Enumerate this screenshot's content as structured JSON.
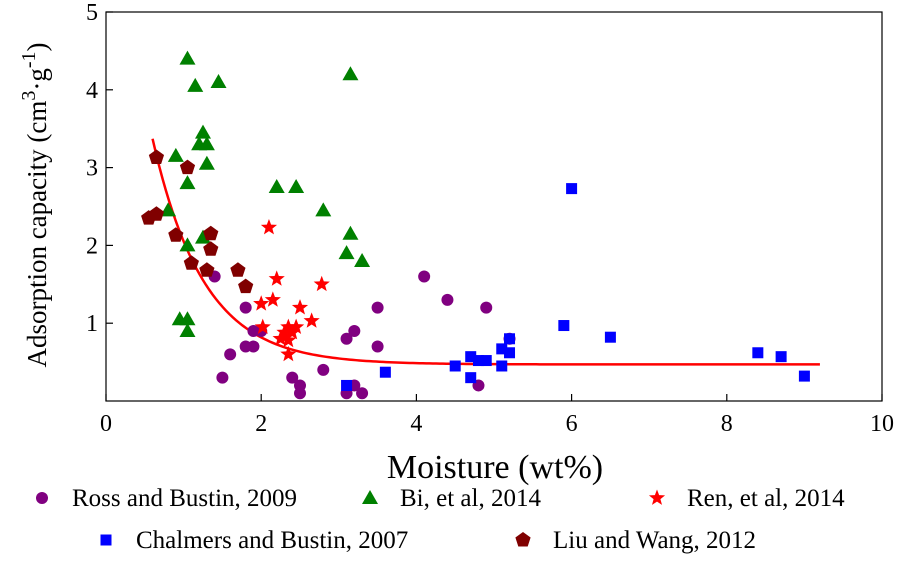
{
  "chart_data": {
    "type": "scatter",
    "xlabel": "Moisture (wt%)",
    "ylabel_main": "Adsorption capacity (cm",
    "ylabel_sup1": "3",
    "ylabel_mid": "·g",
    "ylabel_sup2": "-1",
    "ylabel_end": ")",
    "xlim": [
      0,
      10
    ],
    "ylim": [
      0,
      5
    ],
    "xticks": [
      "0",
      "2",
      "4",
      "6",
      "8",
      "10"
    ],
    "yticks": [
      "1",
      "2",
      "3",
      "4",
      "5"
    ],
    "grid": false,
    "legend_position": "bottom",
    "fit_curve": {
      "color": "#ff0000",
      "label": "",
      "model": "y = 0.47 + 7.2 * exp(-x / 0.66)",
      "x_range": [
        0.6,
        9.2
      ]
    },
    "series": [
      {
        "name": "Ross and Bustin, 2009",
        "marker": "circle",
        "color": "#800080",
        "points": [
          [
            1.5,
            0.3
          ],
          [
            1.6,
            0.6
          ],
          [
            1.8,
            0.7
          ],
          [
            1.8,
            1.2
          ],
          [
            1.9,
            0.9
          ],
          [
            1.9,
            0.7
          ],
          [
            2.0,
            0.9
          ],
          [
            1.4,
            1.6
          ],
          [
            2.4,
            0.3
          ],
          [
            2.5,
            0.2
          ],
          [
            2.5,
            0.1
          ],
          [
            2.8,
            0.4
          ],
          [
            3.1,
            0.8
          ],
          [
            3.1,
            0.1
          ],
          [
            3.2,
            0.9
          ],
          [
            3.2,
            0.2
          ],
          [
            3.3,
            0.1
          ],
          [
            3.5,
            1.2
          ],
          [
            3.5,
            0.7
          ],
          [
            4.1,
            1.6
          ],
          [
            4.4,
            1.3
          ],
          [
            4.8,
            0.2
          ],
          [
            4.9,
            1.2
          ],
          [
            5.2,
            0.8
          ]
        ]
      },
      {
        "name": "Bi, et al, 2014",
        "marker": "triangle",
        "color": "#008000",
        "points": [
          [
            1.05,
            4.4
          ],
          [
            1.15,
            4.05
          ],
          [
            1.45,
            4.1
          ],
          [
            3.15,
            4.2
          ],
          [
            1.25,
            3.45
          ],
          [
            1.2,
            3.3
          ],
          [
            1.3,
            3.3
          ],
          [
            0.9,
            3.15
          ],
          [
            1.3,
            3.05
          ],
          [
            1.05,
            2.8
          ],
          [
            2.2,
            2.75
          ],
          [
            2.45,
            2.75
          ],
          [
            0.8,
            2.45
          ],
          [
            2.8,
            2.45
          ],
          [
            3.15,
            2.15
          ],
          [
            1.25,
            2.1
          ],
          [
            1.05,
            2.0
          ],
          [
            3.1,
            1.9
          ],
          [
            3.3,
            1.8
          ],
          [
            0.95,
            1.05
          ],
          [
            1.05,
            1.05
          ],
          [
            1.05,
            0.9
          ]
        ]
      },
      {
        "name": "Ren, et al, 2014",
        "marker": "star",
        "color": "#ff0000",
        "points": [
          [
            2.1,
            2.23
          ],
          [
            2.2,
            1.57
          ],
          [
            2.78,
            1.5
          ],
          [
            2.15,
            1.3
          ],
          [
            2.0,
            1.25
          ],
          [
            2.5,
            1.2
          ],
          [
            2.65,
            1.03
          ],
          [
            2.02,
            0.95
          ],
          [
            2.35,
            0.95
          ],
          [
            2.45,
            0.95
          ],
          [
            2.3,
            0.88
          ],
          [
            2.4,
            0.88
          ],
          [
            2.25,
            0.8
          ],
          [
            2.35,
            0.78
          ],
          [
            2.35,
            0.6
          ]
        ]
      },
      {
        "name": "Chalmers and Bustin, 2007",
        "marker": "square",
        "color": "#0000ff",
        "points": [
          [
            6.0,
            2.73
          ],
          [
            5.9,
            0.97
          ],
          [
            6.5,
            0.82
          ],
          [
            5.2,
            0.8
          ],
          [
            5.1,
            0.67
          ],
          [
            5.2,
            0.62
          ],
          [
            4.7,
            0.57
          ],
          [
            4.8,
            0.52
          ],
          [
            4.9,
            0.52
          ],
          [
            8.4,
            0.62
          ],
          [
            8.7,
            0.57
          ],
          [
            4.5,
            0.45
          ],
          [
            5.1,
            0.45
          ],
          [
            3.6,
            0.37
          ],
          [
            4.7,
            0.3
          ],
          [
            9.0,
            0.32
          ],
          [
            3.1,
            0.2
          ]
        ]
      },
      {
        "name": "Liu and Wang, 2012",
        "marker": "pentagon",
        "color": "#800000",
        "points": [
          [
            0.65,
            3.13
          ],
          [
            1.05,
            3.0
          ],
          [
            0.55,
            2.35
          ],
          [
            0.65,
            2.4
          ],
          [
            0.9,
            2.13
          ],
          [
            1.35,
            2.15
          ],
          [
            1.35,
            1.95
          ],
          [
            1.1,
            1.77
          ],
          [
            1.3,
            1.68
          ],
          [
            1.7,
            1.68
          ],
          [
            1.8,
            1.47
          ]
        ]
      }
    ]
  }
}
